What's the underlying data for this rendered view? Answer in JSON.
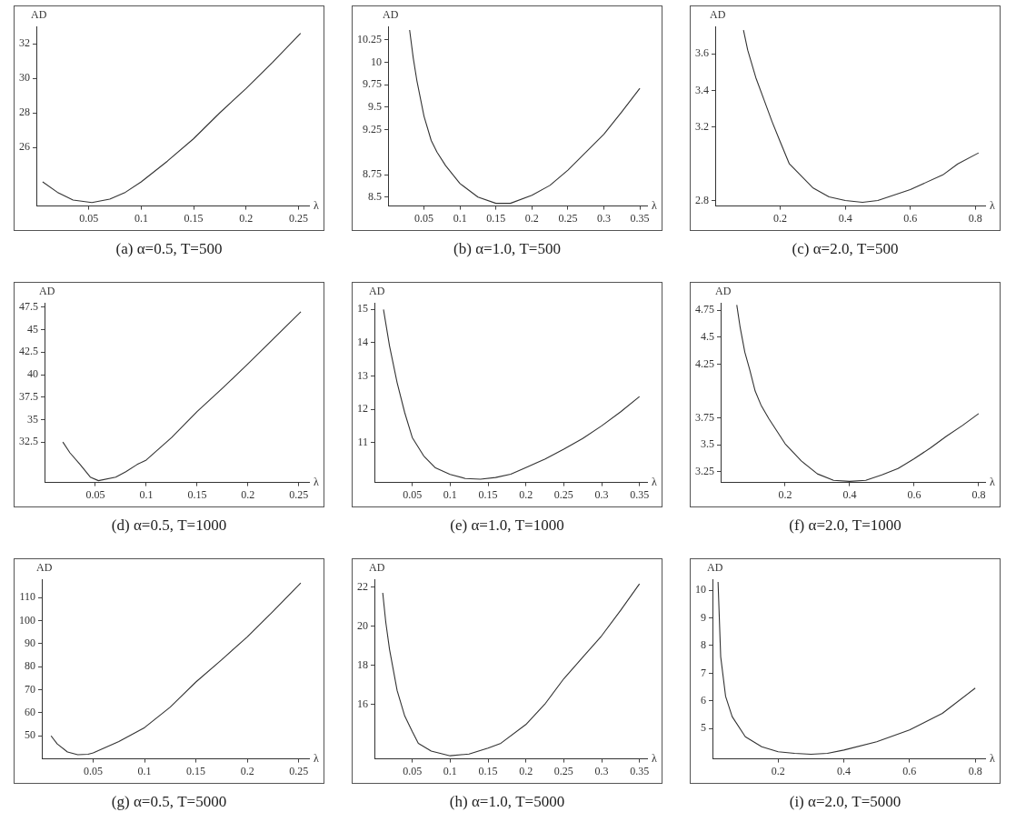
{
  "chart_data": [
    {
      "type": "line",
      "title": "(a) α=0.5, T=500",
      "xlabel": "λ",
      "ylabel": "AD",
      "color": "#333333",
      "grid": false,
      "legend": false,
      "x": [
        0.006,
        0.02,
        0.035,
        0.053,
        0.07,
        0.085,
        0.1,
        0.125,
        0.15,
        0.175,
        0.2,
        0.225,
        0.252
      ],
      "values": [
        24.0,
        23.4,
        22.95,
        22.8,
        23.0,
        23.4,
        24.0,
        25.2,
        26.5,
        28.0,
        29.4,
        30.9,
        32.6
      ],
      "xlim": [
        0,
        0.26
      ],
      "xticks": [
        0.05,
        0.1,
        0.15,
        0.2,
        0.25
      ],
      "ylim": [
        22.6,
        33
      ],
      "yticks": [
        26,
        28,
        30,
        32
      ]
    },
    {
      "type": "line",
      "title": "(b) α=1.0, T=500",
      "xlabel": "λ",
      "ylabel": "AD",
      "color": "#333333",
      "grid": false,
      "legend": false,
      "x": [
        0.03,
        0.035,
        0.04,
        0.05,
        0.06,
        0.068,
        0.08,
        0.1,
        0.125,
        0.15,
        0.17,
        0.2,
        0.225,
        0.25,
        0.275,
        0.3,
        0.325,
        0.35
      ],
      "values": [
        10.36,
        10.05,
        9.8,
        9.4,
        9.13,
        9.0,
        8.85,
        8.65,
        8.5,
        8.43,
        8.43,
        8.52,
        8.63,
        8.8,
        9.0,
        9.2,
        9.45,
        9.71
      ],
      "xlim": [
        0,
        0.36
      ],
      "xticks": [
        0.05,
        0.1,
        0.15,
        0.2,
        0.25,
        0.3,
        0.35
      ],
      "ylim": [
        8.4,
        10.4
      ],
      "yticks": [
        8.5,
        8.75,
        9.25,
        9.5,
        9.75,
        10,
        10.25
      ]
    },
    {
      "type": "line",
      "title": "(c) α=2.0, T=500",
      "xlabel": "λ",
      "ylabel": "AD",
      "color": "#333333",
      "grid": false,
      "legend": false,
      "x": [
        0.087,
        0.1,
        0.125,
        0.15,
        0.175,
        0.2,
        0.228,
        0.3,
        0.35,
        0.4,
        0.453,
        0.5,
        0.6,
        0.7,
        0.746,
        0.81
      ],
      "values": [
        3.73,
        3.62,
        3.47,
        3.35,
        3.23,
        3.12,
        3.0,
        2.87,
        2.82,
        2.8,
        2.79,
        2.8,
        2.86,
        2.94,
        3.0,
        3.06
      ],
      "xlim": [
        0,
        0.83
      ],
      "xticks": [
        0.2,
        0.4,
        0.6,
        0.8
      ],
      "ylim": [
        2.77,
        3.75
      ],
      "yticks": [
        2.8,
        3.2,
        3.4,
        3.6
      ]
    },
    {
      "type": "line",
      "title": "(d) α=0.5, T=1000",
      "xlabel": "λ",
      "ylabel": "AD",
      "color": "#333333",
      "grid": false,
      "legend": false,
      "x": [
        0.018,
        0.025,
        0.035,
        0.045,
        0.053,
        0.07,
        0.08,
        0.091,
        0.1,
        0.125,
        0.15,
        0.175,
        0.2,
        0.225,
        0.252
      ],
      "values": [
        32.5,
        31.3,
        30.0,
        28.6,
        28.2,
        28.6,
        29.2,
        30.0,
        30.5,
        33.0,
        35.9,
        38.5,
        41.2,
        44.0,
        47.0
      ],
      "xlim": [
        0,
        0.26
      ],
      "xticks": [
        0.05,
        0.1,
        0.15,
        0.2,
        0.25
      ],
      "ylim": [
        28,
        48
      ],
      "yticks": [
        32.5,
        35,
        37.5,
        40,
        42.5,
        45,
        47.5
      ]
    },
    {
      "type": "line",
      "title": "(e) α=1.0, T=1000",
      "xlabel": "λ",
      "ylabel": "AD",
      "color": "#333333",
      "grid": false,
      "legend": false,
      "x": [
        0.012,
        0.02,
        0.03,
        0.04,
        0.05,
        0.065,
        0.08,
        0.1,
        0.12,
        0.14,
        0.16,
        0.18,
        0.2,
        0.225,
        0.25,
        0.275,
        0.3,
        0.325,
        0.35
      ],
      "values": [
        15.0,
        13.9,
        12.8,
        11.9,
        11.15,
        10.6,
        10.25,
        10.04,
        9.92,
        9.9,
        9.95,
        10.05,
        10.25,
        10.5,
        10.8,
        11.12,
        11.5,
        11.92,
        12.38
      ],
      "xlim": [
        0,
        0.36
      ],
      "xticks": [
        0.05,
        0.1,
        0.15,
        0.2,
        0.25,
        0.3,
        0.35
      ],
      "ylim": [
        9.8,
        15.2
      ],
      "yticks": [
        11,
        12,
        13,
        14,
        15
      ]
    },
    {
      "type": "line",
      "title": "(f) α=2.0, T=1000",
      "xlabel": "λ",
      "ylabel": "AD",
      "color": "#333333",
      "grid": false,
      "legend": false,
      "x": [
        0.05,
        0.06,
        0.075,
        0.09,
        0.107,
        0.125,
        0.15,
        0.2,
        0.25,
        0.3,
        0.35,
        0.4,
        0.45,
        0.5,
        0.55,
        0.6,
        0.65,
        0.7,
        0.75,
        0.8
      ],
      "values": [
        4.8,
        4.6,
        4.36,
        4.2,
        4.0,
        3.87,
        3.74,
        3.51,
        3.35,
        3.23,
        3.17,
        3.16,
        3.17,
        3.22,
        3.28,
        3.37,
        3.47,
        3.58,
        3.68,
        3.79
      ],
      "xlim": [
        0,
        0.82
      ],
      "xticks": [
        0.2,
        0.4,
        0.6,
        0.8
      ],
      "ylim": [
        3.15,
        4.82
      ],
      "yticks": [
        3.25,
        3.5,
        3.75,
        4.25,
        4.5,
        4.75
      ]
    },
    {
      "type": "line",
      "title": "(g) α=0.5, T=5000",
      "xlabel": "λ",
      "ylabel": "AD",
      "color": "#333333",
      "grid": false,
      "legend": false,
      "x": [
        0.009,
        0.015,
        0.025,
        0.035,
        0.045,
        0.05,
        0.075,
        0.1,
        0.125,
        0.15,
        0.175,
        0.2,
        0.225,
        0.252
      ],
      "values": [
        50,
        46.5,
        43,
        41.8,
        42,
        42.6,
        47.5,
        53.6,
        62.5,
        73.4,
        83,
        93,
        104,
        116.4
      ],
      "xlim": [
        0,
        0.26
      ],
      "xticks": [
        0.05,
        0.1,
        0.15,
        0.2,
        0.25
      ],
      "ylim": [
        40,
        118
      ],
      "yticks": [
        50,
        60,
        70,
        80,
        90,
        100,
        110
      ]
    },
    {
      "type": "line",
      "title": "(h) α=1.0, T=5000",
      "xlabel": "λ",
      "ylabel": "AD",
      "color": "#333333",
      "grid": false,
      "legend": false,
      "x": [
        0.011,
        0.015,
        0.02,
        0.03,
        0.04,
        0.05,
        0.058,
        0.075,
        0.1,
        0.125,
        0.15,
        0.167,
        0.2,
        0.225,
        0.25,
        0.275,
        0.3,
        0.325,
        0.35
      ],
      "values": [
        21.7,
        20.2,
        18.8,
        16.7,
        15.4,
        14.6,
        14.0,
        13.6,
        13.36,
        13.45,
        13.75,
        14.0,
        14.96,
        16.0,
        17.3,
        18.4,
        19.5,
        20.8,
        22.16
      ],
      "xlim": [
        0,
        0.36
      ],
      "xticks": [
        0.05,
        0.1,
        0.15,
        0.2,
        0.25,
        0.3,
        0.35
      ],
      "ylim": [
        13.2,
        22.4
      ],
      "yticks": [
        16,
        18,
        20,
        22
      ]
    },
    {
      "type": "line",
      "title": "(i) α=2.0, T=5000",
      "xlabel": "λ",
      "ylabel": "AD",
      "color": "#333333",
      "grid": false,
      "legend": false,
      "x": [
        0.017,
        0.025,
        0.04,
        0.06,
        0.1,
        0.15,
        0.2,
        0.25,
        0.3,
        0.35,
        0.4,
        0.5,
        0.6,
        0.7,
        0.8
      ],
      "values": [
        10.3,
        7.6,
        6.16,
        5.43,
        4.7,
        4.34,
        4.16,
        4.1,
        4.07,
        4.1,
        4.22,
        4.52,
        4.95,
        5.55,
        6.46
      ],
      "xlim": [
        0,
        0.83
      ],
      "xticks": [
        0.2,
        0.4,
        0.6,
        0.8
      ],
      "ylim": [
        3.9,
        10.4
      ],
      "yticks": [
        5,
        6,
        7,
        8,
        9,
        10
      ]
    }
  ]
}
